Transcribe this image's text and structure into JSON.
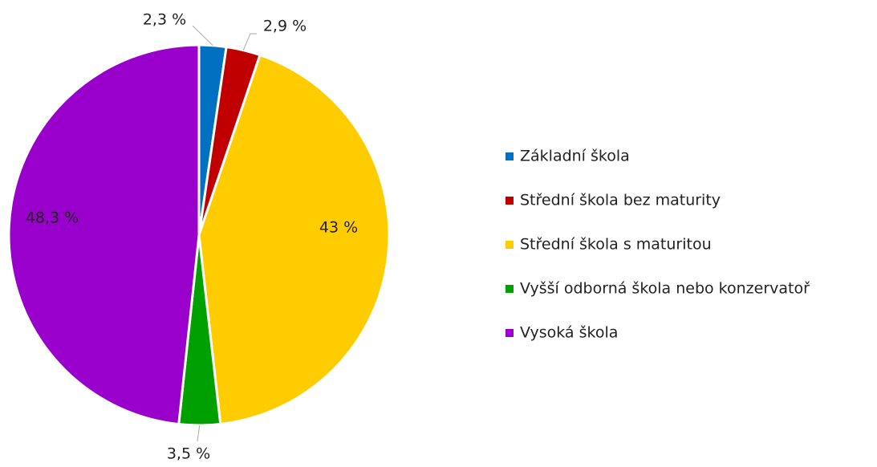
{
  "chart_data": {
    "type": "pie",
    "categories": [
      "Základní škola",
      "Střední škola bez maturity",
      "Střední škola s maturitou",
      "Vyšší odborná škola nebo konzervatoř",
      "Vysoká škola"
    ],
    "values": [
      2.3,
      2.9,
      43,
      3.5,
      48.3
    ],
    "value_labels": [
      "2,3 %",
      "2,9 %",
      "43 %",
      "3,5 %",
      "48,3 %"
    ],
    "colors": [
      "#0070c0",
      "#c00000",
      "#ffcc00",
      "#00a000",
      "#9900cc"
    ],
    "legend": "right"
  }
}
